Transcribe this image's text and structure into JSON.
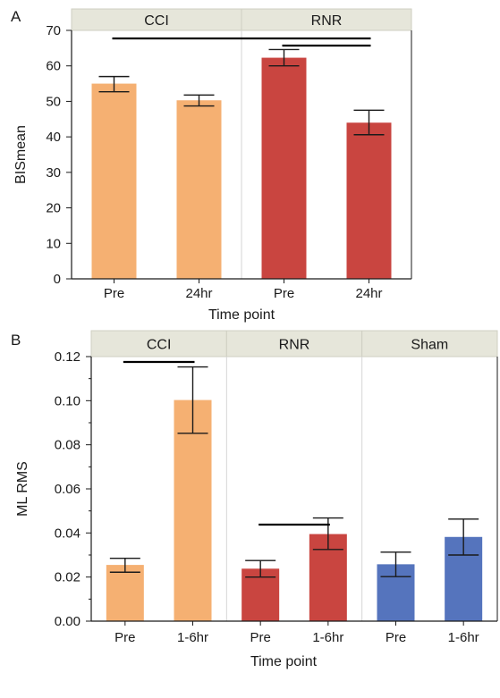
{
  "chart_data": [
    {
      "type": "bar",
      "panel_label": "A",
      "ylabel": "BISmean",
      "xlabel": "Time point",
      "ylim": [
        0,
        70
      ],
      "yticks": [
        0,
        10,
        20,
        30,
        40,
        50,
        60,
        70
      ],
      "facets": [
        {
          "label": "CCI",
          "bars": [
            {
              "category": "Pre",
              "value": 55.0,
              "err_low": 52.7,
              "err_high": 57.0,
              "color": "#f5b072"
            },
            {
              "category": "24hr",
              "value": 50.3,
              "err_low": 48.7,
              "err_high": 51.8,
              "color": "#f5b072"
            }
          ]
        },
        {
          "label": "RNR",
          "bars": [
            {
              "category": "Pre",
              "value": 62.3,
              "err_low": 60.0,
              "err_high": 64.6,
              "color": "#c94540"
            },
            {
              "category": "24hr",
              "value": 44.0,
              "err_low": 40.6,
              "err_high": 47.5,
              "color": "#c94540"
            }
          ]
        }
      ],
      "significance": [
        {
          "from": "CCI Pre",
          "to": "RNR 24hr"
        },
        {
          "from": "RNR Pre",
          "to": "RNR 24hr"
        }
      ]
    },
    {
      "type": "bar",
      "panel_label": "B",
      "ylabel": "ML RMS",
      "xlabel": "Time point",
      "ylim": [
        0,
        0.12
      ],
      "yticks": [
        "0.00",
        "0.02",
        "0.04",
        "0.06",
        "0.08",
        "0.10",
        "0.12"
      ],
      "facets": [
        {
          "label": "CCI",
          "bars": [
            {
              "category": "Pre",
              "value": 0.0255,
              "err_low": 0.0222,
              "err_high": 0.0285,
              "color": "#f5b072"
            },
            {
              "category": "1-6hr",
              "value": 0.1003,
              "err_low": 0.0852,
              "err_high": 0.1153,
              "color": "#f5b072"
            }
          ]
        },
        {
          "label": "RNR",
          "bars": [
            {
              "category": "Pre",
              "value": 0.0238,
              "err_low": 0.02,
              "err_high": 0.0275,
              "color": "#c94540"
            },
            {
              "category": "1-6hr",
              "value": 0.0395,
              "err_low": 0.0325,
              "err_high": 0.0468,
              "color": "#c94540"
            }
          ]
        },
        {
          "label": "Sham",
          "bars": [
            {
              "category": "Pre",
              "value": 0.0258,
              "err_low": 0.0202,
              "err_high": 0.0313,
              "color": "#5574bd"
            },
            {
              "category": "1-6hr",
              "value": 0.0382,
              "err_low": 0.03,
              "err_high": 0.0463,
              "color": "#5574bd"
            }
          ]
        }
      ],
      "significance": [
        {
          "from": "CCI Pre",
          "to": "CCI 1-6hr"
        },
        {
          "from": "RNR Pre",
          "to": "RNR 1-6hr"
        }
      ]
    }
  ],
  "colors": {
    "cci": "#f5b072",
    "rnr": "#c94540",
    "sham": "#5574bd",
    "facet_header": "#e6e6da"
  }
}
